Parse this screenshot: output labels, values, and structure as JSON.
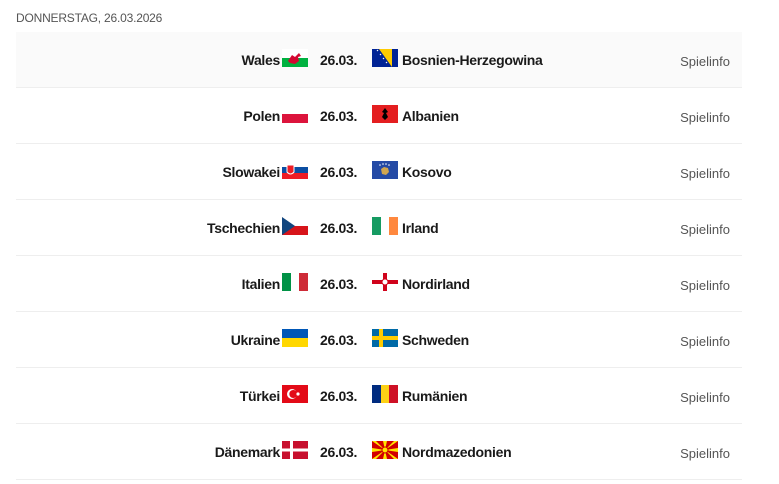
{
  "day_header": "DONNERSTAG, 26.03.2026",
  "matches": [
    {
      "home": "Wales",
      "home_flag": "wales",
      "date": "26.03.",
      "away": "Bosnien-Herzegowina",
      "away_flag": "bosnia",
      "link": "Spielinfo"
    },
    {
      "home": "Polen",
      "home_flag": "poland",
      "date": "26.03.",
      "away": "Albanien",
      "away_flag": "albania",
      "link": "Spielinfo"
    },
    {
      "home": "Slowakei",
      "home_flag": "slovakia",
      "date": "26.03.",
      "away": "Kosovo",
      "away_flag": "kosovo",
      "link": "Spielinfo"
    },
    {
      "home": "Tschechien",
      "home_flag": "czechia",
      "date": "26.03.",
      "away": "Irland",
      "away_flag": "ireland",
      "link": "Spielinfo"
    },
    {
      "home": "Italien",
      "home_flag": "italy",
      "date": "26.03.",
      "away": "Nordirland",
      "away_flag": "northern-ireland",
      "link": "Spielinfo"
    },
    {
      "home": "Ukraine",
      "home_flag": "ukraine",
      "date": "26.03.",
      "away": "Schweden",
      "away_flag": "sweden",
      "link": "Spielinfo"
    },
    {
      "home": "Türkei",
      "home_flag": "turkey",
      "date": "26.03.",
      "away": "Rumänien",
      "away_flag": "romania",
      "link": "Spielinfo"
    },
    {
      "home": "Dänemark",
      "home_flag": "denmark",
      "date": "26.03.",
      "away": "Nordmazedonien",
      "away_flag": "north-macedonia",
      "link": "Spielinfo"
    }
  ]
}
